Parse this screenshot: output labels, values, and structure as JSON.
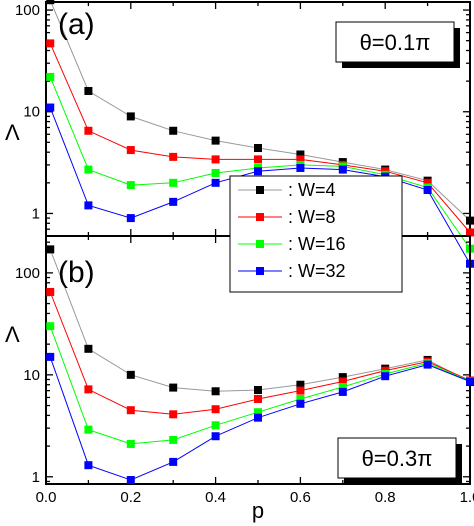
{
  "chart_data": [
    {
      "type": "line",
      "panel_label": "(a)",
      "annotation": "θ=0.1π",
      "ylabel": "Λ",
      "xlabel": "",
      "xlim": [
        0.0,
        1.0
      ],
      "ylim": [
        0.6,
        120
      ],
      "yscale": "log",
      "x": [
        0.01,
        0.1,
        0.2,
        0.3,
        0.4,
        0.5,
        0.6,
        0.7,
        0.8,
        0.9,
        1.0
      ],
      "x_tick_labels": [],
      "y_tick_labels": [
        "1",
        "10",
        "100"
      ],
      "y_ticks": [
        1,
        10,
        100
      ],
      "series": [
        {
          "name": ": W=4",
          "color": "#000000",
          "line_color": "#999999",
          "values": [
            125,
            16,
            9,
            6.5,
            5.2,
            4.4,
            3.8,
            3.2,
            2.7,
            2.1,
            0.85
          ]
        },
        {
          "name": ": W=8",
          "color": "#ff0000",
          "line_color": "#ff0000",
          "values": [
            47,
            6.5,
            4.2,
            3.6,
            3.4,
            3.4,
            3.4,
            3.0,
            2.6,
            2.0,
            0.65
          ]
        },
        {
          "name": ": W=16",
          "color": "#00ff00",
          "line_color": "#00ff00",
          "values": [
            22,
            2.7,
            1.9,
            2.0,
            2.5,
            2.8,
            3.0,
            2.9,
            2.4,
            1.8,
            0.45
          ]
        },
        {
          "name": ": W=32",
          "color": "#0000ff",
          "line_color": "#0000ff",
          "values": [
            11,
            1.2,
            0.9,
            1.3,
            2.0,
            2.6,
            2.8,
            2.7,
            2.3,
            1.7,
            0.32
          ]
        }
      ]
    },
    {
      "type": "line",
      "panel_label": "(b)",
      "annotation": "θ=0.3π",
      "ylabel": "Λ",
      "xlabel": "p",
      "xlim": [
        0.0,
        1.0
      ],
      "ylim": [
        0.85,
        230
      ],
      "yscale": "log",
      "x": [
        0.01,
        0.1,
        0.2,
        0.3,
        0.4,
        0.5,
        0.6,
        0.7,
        0.8,
        0.9,
        1.0
      ],
      "x_tick_labels": [
        "0.0",
        "0.2",
        "0.4",
        "0.6",
        "0.8",
        "1.0"
      ],
      "x_ticks": [
        0.0,
        0.2,
        0.4,
        0.6,
        0.8,
        1.0
      ],
      "y_tick_labels": [
        "1",
        "10",
        "100"
      ],
      "y_ticks": [
        1,
        10,
        100
      ],
      "series": [
        {
          "name": ": W=4",
          "color": "#000000",
          "line_color": "#999999",
          "values": [
            170,
            18,
            10,
            7.5,
            6.9,
            7.1,
            8.0,
            9.5,
            11.5,
            14,
            8.5
          ]
        },
        {
          "name": ": W=8",
          "color": "#ff0000",
          "line_color": "#ff0000",
          "values": [
            65,
            7.2,
            4.5,
            4.1,
            4.6,
            5.8,
            7.0,
            8.6,
            11,
            13.5,
            8.8
          ]
        },
        {
          "name": ": W=16",
          "color": "#00ff00",
          "line_color": "#00ff00",
          "values": [
            30,
            2.9,
            2.1,
            2.3,
            3.2,
            4.3,
            5.8,
            7.6,
            10.2,
            13,
            8.7
          ]
        },
        {
          "name": ": W=32",
          "color": "#0000ff",
          "line_color": "#0000ff",
          "values": [
            15,
            1.3,
            0.93,
            1.4,
            2.5,
            3.8,
            5.2,
            6.8,
            9.7,
            12.6,
            8.6
          ]
        }
      ]
    }
  ],
  "legend_placement": "bottom-right of panel (a)",
  "grid": false
}
